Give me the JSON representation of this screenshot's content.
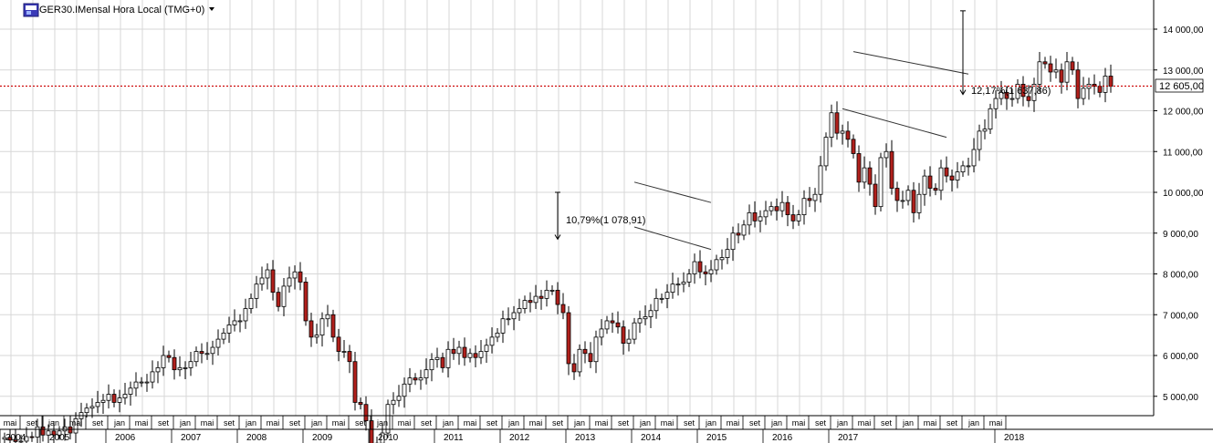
{
  "header": {
    "symbol_title": "GER30.IMensal Hora Local (TMG+0)",
    "instrument_icon": "cfd-icon",
    "dropdown_icon": "dropdown-arrow-icon"
  },
  "chart_data": {
    "type": "candlestick",
    "title": "GER30.IMensal Hora Local (TMG+0)",
    "xlabel": "",
    "ylabel": "",
    "ylim": [
      4400,
      14600
    ],
    "y_tick_labels": [
      "5 000,00",
      "6 000,00",
      "7 000,00",
      "8 000,00",
      "9 000,00",
      "10 000,00",
      "11 000,00",
      "12 000,00",
      "13 000,00",
      "14 000,00"
    ],
    "y_ticks": [
      5000,
      6000,
      7000,
      8000,
      9000,
      10000,
      11000,
      12000,
      13000,
      14000
    ],
    "grid": true,
    "current_price": 12605,
    "current_price_label": "12 605,00",
    "month_labels": [
      "mai",
      "set",
      "jan",
      "mai",
      "set",
      "jan",
      "mai",
      "set",
      "jan",
      "mai",
      "set",
      "jan",
      "mai",
      "set",
      "jan",
      "mai",
      "set",
      "jan",
      "mai",
      "set",
      "jan",
      "mai",
      "set",
      "jan",
      "mai",
      "set",
      "jan",
      "mai",
      "set",
      "jan",
      "mai",
      "set",
      "jan",
      "mai",
      "set",
      "jan",
      "mai",
      "set",
      "jan",
      "mai",
      "set",
      "jan",
      "mai",
      "set",
      "jan",
      "mai"
    ],
    "year_labels": [
      "2004",
      "2005",
      "2006",
      "2007",
      "2008",
      "2009",
      "2010",
      "2011",
      "2012",
      "2013",
      "2014",
      "2015",
      "2016",
      "2017",
      "2018"
    ],
    "first_month_index": 4,
    "period_start": "2004-05",
    "closes": [
      3990,
      3925,
      3890,
      3900,
      4010,
      4000,
      4250,
      4050,
      4150,
      4050,
      4150,
      4250,
      4100,
      4450,
      4600,
      4710,
      4750,
      4850,
      4900,
      5050,
      4850,
      4960,
      5050,
      5200,
      5350,
      5350,
      5350,
      5600,
      5700,
      6000,
      5950,
      5650,
      5700,
      5700,
      5850,
      6100,
      6050,
      6050,
      6200,
      6400,
      6550,
      6750,
      6850,
      6850,
      7150,
      7400,
      7750,
      7900,
      8100,
      7550,
      7200,
      7700,
      7900,
      8050,
      7800,
      6850,
      6450,
      6500,
      6900,
      7000,
      6450,
      6100,
      6100,
      5850,
      4850,
      4800,
      4400,
      3800,
      3850,
      4100,
      4800,
      4900,
      5000,
      5300,
      5450,
      5400,
      5450,
      5650,
      5900,
      5950,
      5700,
      6150,
      6050,
      6200,
      5950,
      6050,
      5950,
      6100,
      6250,
      6450,
      6550,
      6900,
      6900,
      7050,
      7150,
      7350,
      7300,
      7450,
      7400,
      7600,
      7600,
      7250,
      7050,
      5800,
      5600,
      6150,
      6050,
      5850,
      6450,
      6650,
      6850,
      6800,
      6700,
      6300,
      6400,
      6800,
      6900,
      6950,
      7100,
      7400,
      7400,
      7550,
      7750,
      7750,
      7800,
      8000,
      8300,
      8050,
      8000,
      8100,
      8350,
      8400,
      8600,
      9000,
      8950,
      9200,
      9500,
      9300,
      9400,
      9550,
      9650,
      9550,
      9750,
      9450,
      9300,
      9450,
      9850,
      9800,
      9950,
      10650,
      11350,
      11950,
      11450,
      11500,
      11300,
      10950,
      10250,
      10600,
      10200,
      9650,
      10850,
      11000,
      10100,
      9800,
      9800,
      10050,
      9500,
      9950,
      10400,
      10100,
      10050,
      10600,
      10400,
      10300,
      10500,
      10650,
      10650,
      11050,
      11500,
      11550,
      12050,
      12300,
      12450,
      12300,
      12300,
      12650,
      12350,
      12250,
      12650,
      13200,
      13150,
      12950,
      13000,
      12700,
      13200,
      13000,
      12300,
      12550,
      12650,
      12600,
      12450,
      12850,
      12600
    ],
    "annotations": [
      {
        "label": "10,79%(1 078,91)",
        "type": "measure-arrow-down"
      },
      {
        "label": "12,17%(1 637,86)",
        "type": "measure-arrow-down"
      },
      {
        "type": "trend-channel",
        "id": "channel-2014"
      },
      {
        "type": "trend-channel",
        "id": "channel-2017"
      }
    ],
    "colors": {
      "up_candle": "#ffffff",
      "down_candle": "#b0201c",
      "wick": "#000000",
      "price_line": "#cc0000",
      "grid": "#d7d7d7"
    }
  }
}
